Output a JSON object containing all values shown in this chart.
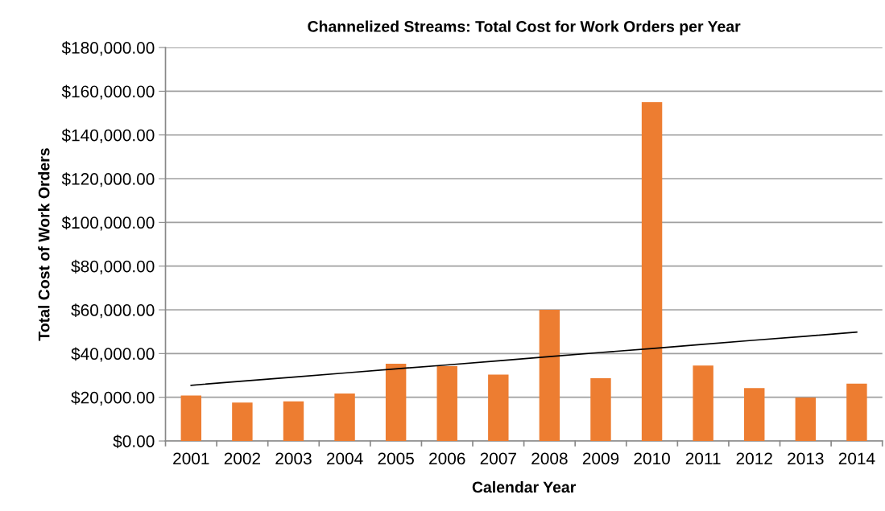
{
  "chart_data": {
    "type": "bar",
    "title": "Channelized Streams: Total Cost for Work Orders per Year",
    "xlabel": "Calendar Year",
    "ylabel": "Total Cost of Work Orders",
    "categories": [
      "2001",
      "2002",
      "2003",
      "2004",
      "2005",
      "2006",
      "2007",
      "2008",
      "2009",
      "2010",
      "2011",
      "2012",
      "2013",
      "2014"
    ],
    "series": [
      {
        "color": "#ed7d31",
        "values": [
          20800,
          17600,
          18100,
          21700,
          35300,
          34200,
          30400,
          60000,
          28700,
          155000,
          34500,
          24200,
          19900,
          26200
        ]
      },
      {
        "type": "line",
        "color": "#000000",
        "values": [
          25500,
          27400,
          29200,
          31100,
          33000,
          34800,
          36700,
          38600,
          40500,
          42300,
          44200,
          46100,
          47900,
          49800
        ]
      }
    ],
    "ylim": [
      0,
      180000
    ],
    "yticks": [
      {
        "value": 0,
        "label": "$0.00"
      },
      {
        "value": 20000,
        "label": "$20,000.00"
      },
      {
        "value": 40000,
        "label": "$40,000.00"
      },
      {
        "value": 60000,
        "label": "$60,000.00"
      },
      {
        "value": 80000,
        "label": "$80,000.00"
      },
      {
        "value": 100000,
        "label": "$100,000.00"
      },
      {
        "value": 120000,
        "label": "$120,000.00"
      },
      {
        "value": 140000,
        "label": "$140,000.00"
      },
      {
        "value": 160000,
        "label": "$160,000.00"
      },
      {
        "value": 180000,
        "label": "$180,000.00"
      }
    ],
    "grid": "y",
    "legend": false
  }
}
